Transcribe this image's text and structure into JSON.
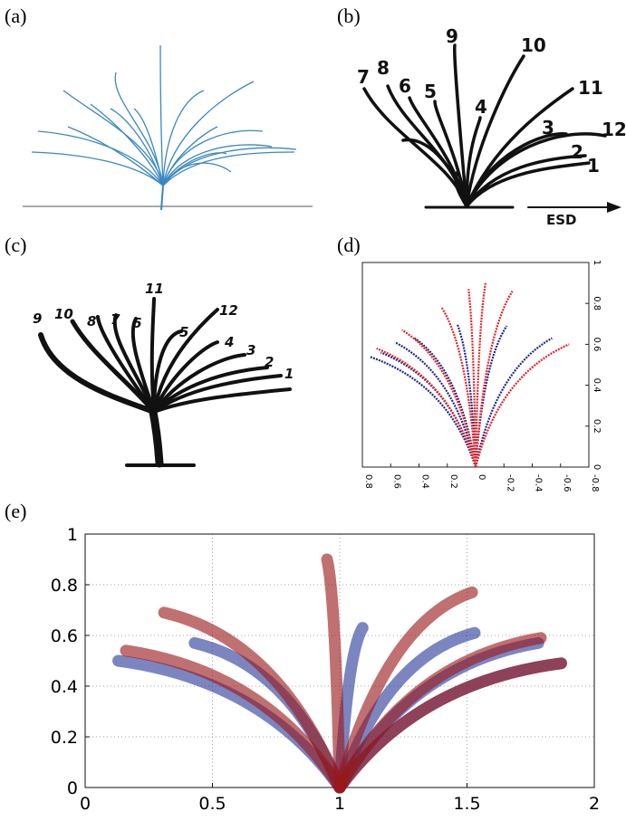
{
  "panels": {
    "a": {
      "label": "(a)"
    },
    "b": {
      "label": "(b)",
      "numbers": [
        "1",
        "2",
        "3",
        "4",
        "5",
        "6",
        "7",
        "8",
        "9",
        "10",
        "11",
        "12"
      ],
      "arrow_label": "ESD"
    },
    "c": {
      "label": "(c)",
      "numbers": [
        "1",
        "2",
        "3",
        "4",
        "5",
        "6",
        "7",
        "8",
        "9",
        "10",
        "11",
        "12"
      ]
    },
    "d": {
      "label": "(d)"
    },
    "e": {
      "label": "(e)"
    }
  },
  "chart_data": [
    {
      "panel": "d",
      "type": "line",
      "xlim": [
        0.8,
        -0.8
      ],
      "ylim": [
        0,
        1
      ],
      "x_ticks": [
        "0.8",
        "0.6",
        "0.4",
        "0.2",
        "0",
        "-0.2",
        "-0.4",
        "-0.6",
        "-0.8"
      ],
      "y_ticks": [
        "0",
        "0.2",
        "0.4",
        "0.6",
        "0.8",
        "1"
      ],
      "series": [
        {
          "color": "#1f2a8a",
          "tips": [
            [
              0.75,
              0.54
            ],
            [
              0.67,
              0.56
            ],
            [
              0.57,
              0.61
            ],
            [
              0.43,
              0.63
            ],
            [
              0.13,
              0.7
            ],
            [
              -0.22,
              0.69
            ],
            [
              -0.54,
              0.63
            ]
          ]
        },
        {
          "color": "#e0242a",
          "tips": [
            [
              0.7,
              0.58
            ],
            [
              0.52,
              0.67
            ],
            [
              0.24,
              0.78
            ],
            [
              0.05,
              0.87
            ],
            [
              -0.07,
              0.9
            ],
            [
              -0.26,
              0.86
            ],
            [
              -0.66,
              0.6
            ]
          ]
        }
      ]
    },
    {
      "panel": "e",
      "type": "line",
      "xlim": [
        0,
        2
      ],
      "ylim": [
        0,
        1
      ],
      "x_ticks": [
        "0",
        "0.5",
        "1",
        "1.5",
        "2"
      ],
      "y_ticks": [
        "0",
        "0.2",
        "0.4",
        "0.6",
        "0.8",
        "1"
      ],
      "grid": true,
      "series": [
        {
          "color": "#2a3a9a",
          "tips": [
            [
              0.13,
              0.5
            ],
            [
              0.43,
              0.57
            ],
            [
              1.09,
              0.63
            ],
            [
              1.53,
              0.61
            ],
            [
              1.78,
              0.57
            ],
            [
              1.87,
              0.49
            ]
          ]
        },
        {
          "color": "#9a1818",
          "tips": [
            [
              0.16,
              0.54
            ],
            [
              0.31,
              0.69
            ],
            [
              0.95,
              0.9
            ],
            [
              1.52,
              0.77
            ],
            [
              1.79,
              0.59
            ],
            [
              1.87,
              0.49
            ]
          ]
        }
      ]
    }
  ]
}
